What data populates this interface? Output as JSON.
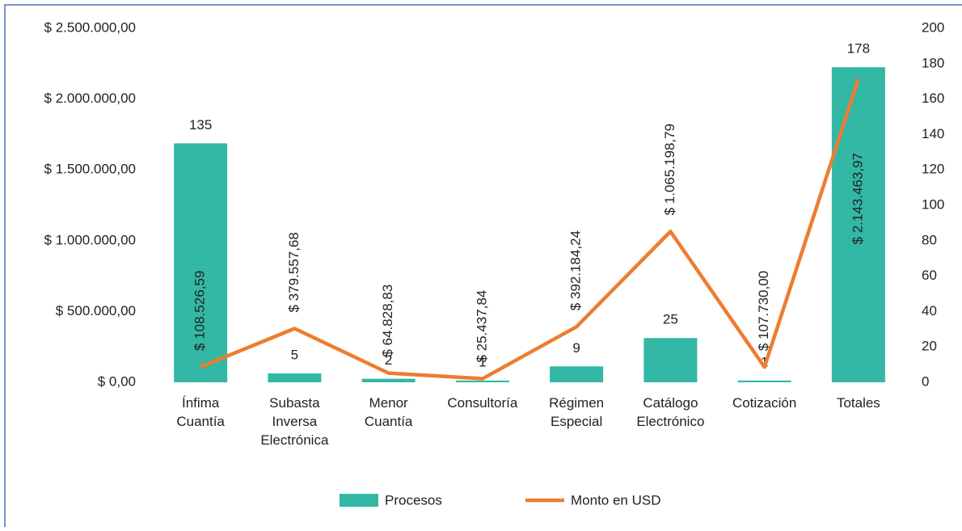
{
  "chart_data": {
    "type": "bar-line",
    "categories": [
      "Ínfima Cuantía",
      "Subasta Inversa Electrónica",
      "Menor Cuantía",
      "Consultoría",
      "Régimen Especial",
      "Catálogo Electrónico",
      "Cotización",
      "Totales"
    ],
    "series": [
      {
        "name": "Procesos",
        "type": "bar",
        "axis": "y2",
        "color": "#32b8a5",
        "values": [
          135,
          5,
          2,
          1,
          9,
          25,
          1,
          178
        ]
      },
      {
        "name": "Monto en USD",
        "type": "line",
        "axis": "y",
        "color": "#ed7d31",
        "values": [
          108526.59,
          379557.68,
          64828.83,
          25437.84,
          392184.24,
          1065198.79,
          107730.0,
          2143463.97
        ],
        "value_labels": [
          "$ 108.526,59",
          "$ 379.557,68",
          "$ 64.828,83",
          "$ 25.437,84",
          "$ 392.184,24",
          "$ 1.065.198,79",
          "$ 107.730,00",
          "$ 2.143.463,97"
        ]
      }
    ],
    "ylim": [
      0,
      2500000
    ],
    "yticks": [
      {
        "value": 0,
        "label": "$ 0,00"
      },
      {
        "value": 500000,
        "label": "$ 500.000,00"
      },
      {
        "value": 1000000,
        "label": "$ 1.000.000,00"
      },
      {
        "value": 1500000,
        "label": "$ 1.500.000,00"
      },
      {
        "value": 2000000,
        "label": "$ 2.000.000,00"
      },
      {
        "value": 2500000,
        "label": "$ 2.500.000,00"
      }
    ],
    "y2lim": [
      0,
      200
    ],
    "y2ticks": [
      0,
      20,
      40,
      60,
      80,
      100,
      120,
      140,
      160,
      180,
      200
    ],
    "legend": "bottom"
  }
}
